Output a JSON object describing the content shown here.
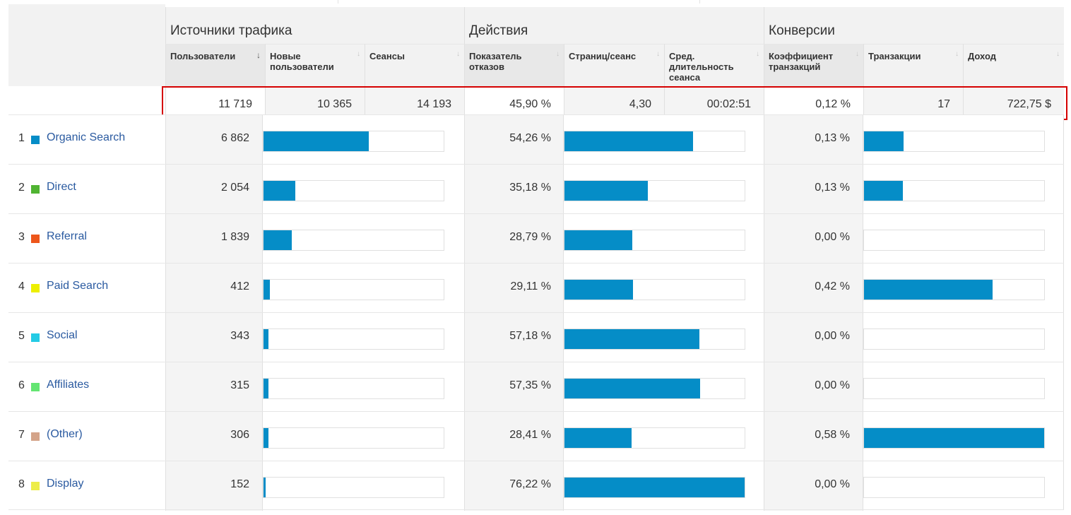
{
  "groups": {
    "acquisition": "Источники трафика",
    "behavior": "Действия",
    "conversions": "Конверсии"
  },
  "columns": [
    {
      "label": "Пользователи",
      "sorted": true
    },
    {
      "label": "Новые пользователи"
    },
    {
      "label": "Сеансы"
    },
    {
      "label": "Показатель отказов"
    },
    {
      "label": "Страниц/сеанс"
    },
    {
      "label": "Сред. длительность сеанса"
    },
    {
      "label": "Коэффициент транзакций"
    },
    {
      "label": "Транзакции"
    },
    {
      "label": "Доход"
    }
  ],
  "totals": {
    "users": "11 719",
    "new_users": "10 365",
    "sessions": "14 193",
    "bounce_rate": "45,90 %",
    "pages_per_session": "4,30",
    "avg_duration": "00:02:51",
    "transaction_rate": "0,12 %",
    "transactions": "17",
    "revenue": "722,75 $"
  },
  "rows": [
    {
      "num": "1",
      "name": "Organic Search",
      "color": "#058dc7",
      "users": "6 862",
      "users_share": 0.585,
      "bounce": "54,26 %",
      "bounce_share": 0.712,
      "conv": "0,13 %",
      "conv_share": 0.22
    },
    {
      "num": "2",
      "name": "Direct",
      "color": "#50b432",
      "users": "2 054",
      "users_share": 0.175,
      "bounce": "35,18 %",
      "bounce_share": 0.462,
      "conv": "0,13 %",
      "conv_share": 0.216
    },
    {
      "num": "3",
      "name": "Referral",
      "color": "#ed561b",
      "users": "1 839",
      "users_share": 0.157,
      "bounce": "28,79 %",
      "bounce_share": 0.378,
      "conv": "0,00 %",
      "conv_share": 0
    },
    {
      "num": "4",
      "name": "Paid Search",
      "color": "#edef00",
      "users": "412",
      "users_share": 0.035,
      "bounce": "29,11 %",
      "bounce_share": 0.382,
      "conv": "0,42 %",
      "conv_share": 0.715
    },
    {
      "num": "5",
      "name": "Social",
      "color": "#24cbe5",
      "users": "343",
      "users_share": 0.029,
      "bounce": "57,18 %",
      "bounce_share": 0.75,
      "conv": "0,00 %",
      "conv_share": 0
    },
    {
      "num": "6",
      "name": "Affiliates",
      "color": "#64e572",
      "users": "315",
      "users_share": 0.027,
      "bounce": "57,35 %",
      "bounce_share": 0.752,
      "conv": "0,00 %",
      "conv_share": 0
    },
    {
      "num": "7",
      "name": "(Other)",
      "color": "#d4a48a",
      "users": "306",
      "users_share": 0.026,
      "bounce": "28,41 %",
      "bounce_share": 0.373,
      "conv": "0,58 %",
      "conv_share": 1.0
    },
    {
      "num": "8",
      "name": "Display",
      "color": "#eded4a",
      "users": "152",
      "users_share": 0.013,
      "bounce": "76,22 %",
      "bounce_share": 1.0,
      "conv": "0,00 %",
      "conv_share": 0
    }
  ]
}
